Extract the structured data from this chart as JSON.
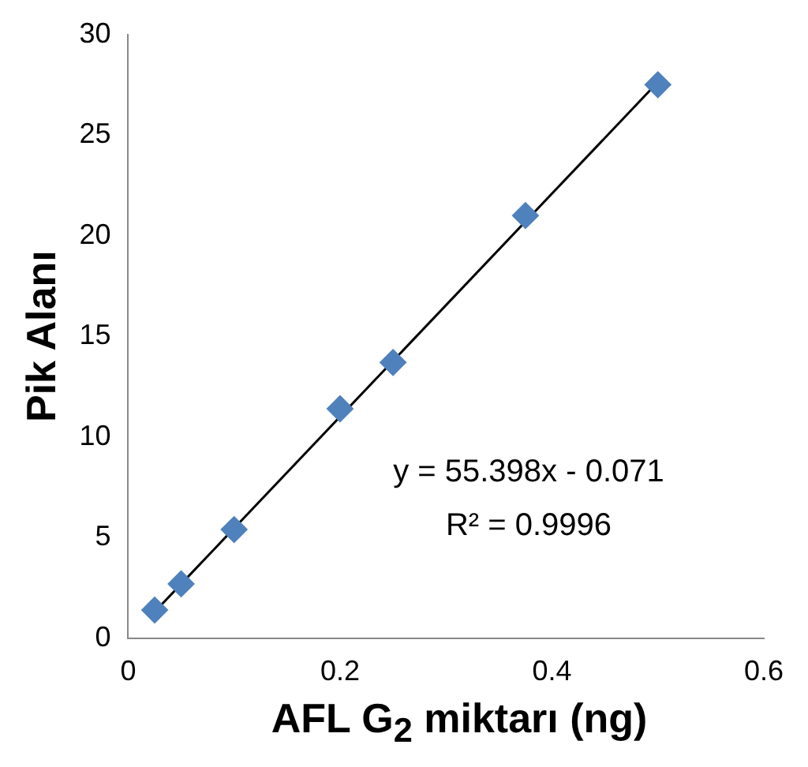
{
  "chart_data": {
    "type": "scatter",
    "xlabel": "AFL G$_{2}$ miktarı (ng)",
    "ylabel": "Pik Alanı",
    "xlim": [
      0,
      0.6
    ],
    "xticks": [
      0,
      0.2,
      0.4,
      0.6
    ],
    "ylim": [
      0,
      30
    ],
    "yticks": [
      0,
      5,
      10,
      15,
      20,
      25,
      30
    ],
    "grid": false,
    "legend": false,
    "marker": "diamond",
    "annotations": [
      "y = 55.398x - 0.071",
      "R² = 0.9996"
    ],
    "series": [
      {
        "type": "scatter",
        "color": "#4f81bd",
        "x": [
          0.025,
          0.05,
          0.1,
          0.2,
          0.25,
          0.375,
          0.5
        ],
        "values": [
          1.4,
          2.7,
          5.4,
          11.4,
          13.7,
          21,
          27.5
        ]
      },
      {
        "type": "line",
        "color": "#000000",
        "line_style": "solid",
        "marker": "none",
        "x": [
          0.025,
          0.5
        ],
        "values": [
          1.31,
          27.63
        ]
      }
    ]
  }
}
